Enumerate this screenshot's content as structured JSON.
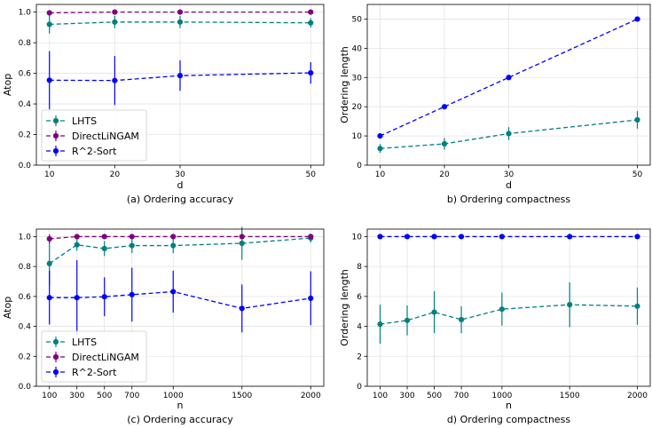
{
  "chart_data": [
    {
      "type": "line",
      "caption": "(a) Ordering accuracy",
      "xlabel": "d",
      "ylabel": "Atop",
      "x": [
        10,
        20,
        30,
        50
      ],
      "xticks": [
        "10",
        "20",
        "30",
        "50"
      ],
      "xlim": [
        8.0,
        52.0
      ],
      "ylim": [
        0.0,
        1.05
      ],
      "yticks": [
        "0.0",
        "0.2",
        "0.4",
        "0.6",
        "0.8",
        "1.0"
      ],
      "grid": true,
      "legend": "lower-left",
      "series": [
        {
          "name": "LHTS",
          "color": "#008080",
          "y": [
            0.92,
            0.935,
            0.935,
            0.93
          ],
          "err": [
            0.06,
            0.04,
            0.04,
            0.03
          ]
        },
        {
          "name": "DirectLiNGAM",
          "color": "#800080",
          "y": [
            0.995,
            1.0,
            1.0,
            1.0
          ],
          "err": [
            0.01,
            0.005,
            0.005,
            0.0
          ]
        },
        {
          "name": "R^2-Sort",
          "color": "#0000ff",
          "y": [
            0.555,
            0.553,
            0.585,
            0.603
          ],
          "err": [
            0.19,
            0.16,
            0.1,
            0.07
          ]
        }
      ]
    },
    {
      "type": "line",
      "caption": "b) Ordering compactness",
      "xlabel": "d",
      "ylabel": "Ordering length",
      "x": [
        10,
        20,
        30,
        50
      ],
      "xticks": [
        "10",
        "20",
        "30",
        "50"
      ],
      "xlim": [
        8.0,
        52.0
      ],
      "ylim": [
        0,
        55
      ],
      "yticks": [
        "0",
        "10",
        "20",
        "30",
        "40",
        "50"
      ],
      "grid": true,
      "legend": "none",
      "series": [
        {
          "name": "LHTS",
          "color": "#008080",
          "y": [
            5.7,
            7.3,
            10.8,
            15.5
          ],
          "err": [
            1.5,
            2.0,
            2.2,
            3.0
          ]
        },
        {
          "name": "R^2-Sort",
          "color": "#0000ff",
          "y": [
            10,
            20,
            30,
            50
          ],
          "err": [
            0,
            0,
            0,
            0
          ]
        }
      ]
    },
    {
      "type": "line",
      "caption": "(c) Ordering accuracy",
      "xlabel": "n",
      "ylabel": "Atop",
      "x": [
        100,
        300,
        500,
        700,
        1000,
        1500,
        2000
      ],
      "xticks": [
        "100",
        "300",
        "500",
        "700",
        "1000",
        "1500",
        "2000"
      ],
      "xlim": [
        5.0,
        2095.0
      ],
      "ylim": [
        0.0,
        1.05
      ],
      "yticks": [
        "0.0",
        "0.2",
        "0.4",
        "0.6",
        "0.8",
        "1.0"
      ],
      "grid": true,
      "legend": "lower-left",
      "series": [
        {
          "name": "LHTS",
          "color": "#008080",
          "y": [
            0.82,
            0.945,
            0.92,
            0.94,
            0.94,
            0.955,
            0.99
          ],
          "err": [
            0.15,
            0.04,
            0.05,
            0.05,
            0.05,
            0.11,
            0.03
          ]
        },
        {
          "name": "DirectLiNGAM",
          "color": "#800080",
          "y": [
            0.985,
            1.0,
            1.0,
            1.0,
            1.0,
            1.0,
            1.0
          ],
          "err": [
            0.03,
            0.01,
            0.01,
            0.01,
            0.01,
            0.01,
            0.005
          ]
        },
        {
          "name": "R^2-Sort",
          "color": "#0000ff",
          "y": [
            0.592,
            0.592,
            0.598,
            0.612,
            0.632,
            0.52,
            0.588
          ],
          "err": [
            0.18,
            0.25,
            0.13,
            0.18,
            0.14,
            0.16,
            0.18
          ]
        }
      ]
    },
    {
      "type": "line",
      "caption": "d) Ordering compactness",
      "xlabel": "n",
      "ylabel": "Ordering length",
      "x": [
        100,
        300,
        500,
        700,
        1000,
        1500,
        2000
      ],
      "xticks": [
        "100",
        "300",
        "500",
        "700",
        "1000",
        "1500",
        "2000"
      ],
      "xlim": [
        5.0,
        2095.0
      ],
      "ylim": [
        0,
        10.5
      ],
      "yticks": [
        "0",
        "2",
        "4",
        "6",
        "8",
        "10"
      ],
      "grid": true,
      "legend": "none",
      "series": [
        {
          "name": "LHTS",
          "color": "#008080",
          "y": [
            4.15,
            4.4,
            4.95,
            4.45,
            5.15,
            5.45,
            5.35
          ],
          "err": [
            1.3,
            1.0,
            1.4,
            0.9,
            1.1,
            1.5,
            1.25
          ]
        },
        {
          "name": "R^2-Sort",
          "color": "#0000ff",
          "y": [
            10,
            10,
            10,
            10,
            10,
            10,
            10
          ],
          "err": [
            0,
            0,
            0,
            0,
            0,
            0,
            0
          ]
        }
      ]
    }
  ]
}
